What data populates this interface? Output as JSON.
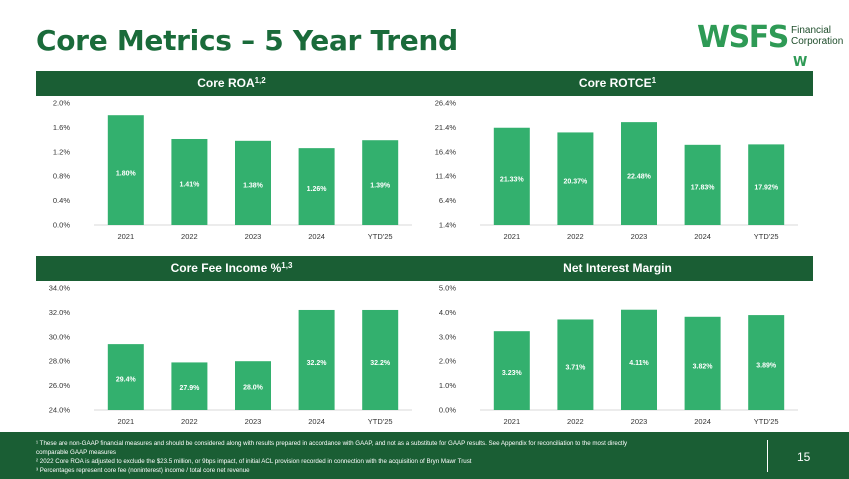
{
  "header": {
    "title": "Core Metrics – 5 Year Trend"
  },
  "logo": {
    "main": "WSFS",
    "line1": "Financial",
    "line2": "Corporation",
    "mark": "W"
  },
  "colors": {
    "bar": "#33b06e",
    "header_band": "#1a5e34",
    "title": "#1a6b3a"
  },
  "chart_data": [
    {
      "type": "bar",
      "title": "Core ROA",
      "title_sup": "1,2",
      "categories": [
        "2021",
        "2022",
        "2023",
        "2024",
        "YTD'25"
      ],
      "values": [
        1.8,
        1.41,
        1.38,
        1.26,
        1.39
      ],
      "value_labels": [
        "1.80%",
        "1.41%",
        "1.38%",
        "1.26%",
        "1.39%"
      ],
      "yticks": [
        "0.0%",
        "0.4%",
        "0.8%",
        "1.2%",
        "1.6%",
        "2.0%"
      ],
      "ylim": [
        0,
        2.0
      ]
    },
    {
      "type": "bar",
      "title": "Core ROTCE",
      "title_sup": "1",
      "categories": [
        "2021",
        "2022",
        "2023",
        "2024",
        "YTD'25"
      ],
      "values": [
        21.33,
        20.37,
        22.48,
        17.83,
        17.92
      ],
      "value_labels": [
        "21.33%",
        "20.37%",
        "22.48%",
        "17.83%",
        "17.92%"
      ],
      "yticks": [
        "1.4%",
        "6.4%",
        "11.4%",
        "16.4%",
        "21.4%",
        "26.4%"
      ],
      "ylim": [
        1.4,
        26.4
      ]
    },
    {
      "type": "bar",
      "title": "Core Fee Income %",
      "title_sup": "1,3",
      "categories": [
        "2021",
        "2022",
        "2023",
        "2024",
        "YTD'25"
      ],
      "values": [
        29.4,
        27.9,
        28.0,
        32.2,
        32.2
      ],
      "value_labels": [
        "29.4%",
        "27.9%",
        "28.0%",
        "32.2%",
        "32.2%"
      ],
      "yticks": [
        "24.0%",
        "26.0%",
        "28.0%",
        "30.0%",
        "32.0%",
        "34.0%"
      ],
      "ylim": [
        24.0,
        34.0
      ]
    },
    {
      "type": "bar",
      "title": "Net Interest Margin",
      "title_sup": "",
      "categories": [
        "2021",
        "2022",
        "2023",
        "2024",
        "YTD'25"
      ],
      "values": [
        3.23,
        3.71,
        4.11,
        3.82,
        3.89
      ],
      "value_labels": [
        "3.23%",
        "3.71%",
        "4.11%",
        "3.82%",
        "3.89%"
      ],
      "yticks": [
        "0.0%",
        "1.0%",
        "2.0%",
        "3.0%",
        "4.0%",
        "5.0%"
      ],
      "ylim": [
        0,
        5.0
      ]
    }
  ],
  "footnotes": [
    "¹ These are non-GAAP financial measures and should be considered along with results prepared in accordance with GAAP, and not as a substitute for GAAP results. See Appendix for reconciliation to the most directly",
    "comparable GAAP measures",
    "² 2022 Core ROA is adjusted to exclude the $23.5 million, or 9bps impact, of initial ACL provision recorded in connection with the acquisition of Bryn Mawr Trust",
    "³ Percentages represent core fee (noninterest) income / total core net revenue"
  ],
  "page_number": "15"
}
